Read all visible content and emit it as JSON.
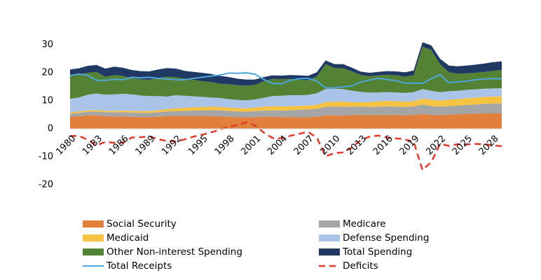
{
  "chart_data": {
    "type": "area",
    "stacked": true,
    "x": [
      1980,
      1981,
      1982,
      1983,
      1984,
      1985,
      1986,
      1987,
      1988,
      1989,
      1990,
      1991,
      1992,
      1993,
      1994,
      1995,
      1996,
      1997,
      1998,
      1999,
      2000,
      2001,
      2002,
      2003,
      2004,
      2005,
      2006,
      2007,
      2008,
      2009,
      2010,
      2011,
      2012,
      2013,
      2014,
      2015,
      2016,
      2017,
      2018,
      2019,
      2020,
      2021,
      2022,
      2023,
      2024,
      2025,
      2026,
      2027,
      2028,
      2029
    ],
    "xlim": [
      1980,
      2029
    ],
    "xticks": [
      1980,
      1983,
      1986,
      1989,
      1992,
      1995,
      1998,
      2001,
      2004,
      2007,
      2010,
      2013,
      2016,
      2019,
      2022,
      2025,
      2028
    ],
    "ylim": [
      -20,
      30
    ],
    "yticks": [
      -20,
      -10,
      0,
      10,
      20,
      30
    ],
    "series": [
      {
        "name": "Social Security",
        "color": "#e0803c",
        "values": [
          4.3,
          4.5,
          4.8,
          4.8,
          4.5,
          4.4,
          4.4,
          4.3,
          4.2,
          4.2,
          4.3,
          4.5,
          4.5,
          4.5,
          4.5,
          4.5,
          4.5,
          4.4,
          4.3,
          4.2,
          4.1,
          4.2,
          4.3,
          4.3,
          4.2,
          4.2,
          4.1,
          4.2,
          4.3,
          4.8,
          4.8,
          4.7,
          4.9,
          4.9,
          4.9,
          4.9,
          4.9,
          4.9,
          4.8,
          4.9,
          5.3,
          5.0,
          4.8,
          5.1,
          5.2,
          5.3,
          5.4,
          5.5,
          5.5,
          5.5
        ]
      },
      {
        "name": "Medicare",
        "color": "#a5a5a5",
        "values": [
          1.1,
          1.2,
          1.3,
          1.4,
          1.4,
          1.5,
          1.5,
          1.5,
          1.5,
          1.5,
          1.6,
          1.7,
          1.8,
          1.9,
          2.0,
          2.1,
          2.2,
          2.2,
          2.1,
          2.0,
          2.0,
          2.1,
          2.2,
          2.3,
          2.3,
          2.4,
          2.7,
          2.7,
          2.8,
          3.1,
          3.1,
          3.2,
          3.0,
          3.0,
          2.9,
          3.0,
          3.1,
          3.0,
          3.0,
          3.1,
          3.4,
          3.1,
          3.1,
          3.0,
          3.1,
          3.2,
          3.3,
          3.4,
          3.5,
          3.6
        ]
      },
      {
        "name": "Medicaid",
        "color": "#f5c242",
        "values": [
          0.5,
          0.5,
          0.5,
          0.5,
          0.5,
          0.5,
          0.6,
          0.6,
          0.6,
          0.6,
          0.7,
          0.8,
          1.0,
          1.1,
          1.2,
          1.2,
          1.2,
          1.2,
          1.2,
          1.2,
          1.2,
          1.3,
          1.4,
          1.5,
          1.5,
          1.5,
          1.4,
          1.4,
          1.4,
          1.7,
          1.8,
          1.8,
          1.6,
          1.6,
          1.7,
          1.9,
          2.0,
          2.0,
          1.9,
          1.9,
          2.1,
          2.3,
          2.2,
          2.3,
          2.3,
          2.4,
          2.4,
          2.5,
          2.5,
          2.5
        ]
      },
      {
        "name": "Defense Spending",
        "color": "#a9c4e6",
        "values": [
          4.8,
          5.0,
          5.6,
          5.9,
          5.8,
          5.9,
          6.0,
          5.9,
          5.6,
          5.4,
          5.1,
          4.5,
          4.7,
          4.3,
          3.9,
          3.6,
          3.3,
          3.2,
          3.0,
          2.9,
          2.9,
          2.9,
          3.2,
          3.6,
          3.8,
          3.9,
          3.8,
          3.8,
          4.2,
          4.6,
          4.6,
          4.5,
          4.1,
          3.7,
          3.4,
          3.2,
          3.1,
          3.1,
          3.1,
          3.2,
          3.4,
          3.2,
          3.0,
          3.0,
          3.0,
          3.0,
          3.0,
          2.9,
          2.9,
          2.9
        ]
      },
      {
        "name": "Other Non-interest Spending",
        "color": "#548235",
        "values": [
          8.6,
          8.2,
          7.8,
          7.7,
          6.4,
          6.9,
          6.4,
          5.8,
          5.8,
          5.8,
          6.5,
          7.1,
          6.5,
          6.1,
          5.9,
          5.6,
          5.5,
          5.1,
          5.3,
          5.3,
          5.2,
          5.2,
          5.9,
          6.1,
          5.9,
          5.8,
          5.5,
          5.2,
          5.9,
          8.9,
          7.4,
          7.4,
          6.9,
          6.0,
          5.9,
          6.1,
          6.2,
          6.1,
          5.8,
          6.0,
          15.1,
          14.6,
          10.0,
          6.8,
          6.1,
          5.9,
          5.9,
          6.0,
          6.3,
          6.5
        ]
      },
      {
        "name": "Total Spending",
        "color": "#203864",
        "values": [
          1.9,
          2.2,
          2.5,
          2.5,
          2.9,
          3.0,
          2.9,
          2.9,
          2.9,
          3.0,
          3.0,
          3.1,
          3.0,
          2.8,
          2.8,
          3.0,
          2.9,
          2.8,
          2.6,
          2.3,
          2.2,
          1.9,
          1.5,
          1.3,
          1.3,
          1.4,
          1.6,
          1.6,
          1.6,
          1.3,
          1.4,
          1.5,
          1.3,
          1.2,
          1.2,
          1.2,
          1.3,
          1.4,
          1.6,
          1.7,
          1.6,
          1.6,
          1.9,
          2.4,
          2.6,
          2.8,
          2.9,
          3.0,
          3.1,
          3.1
        ]
      },
      {
        "name": "Total Receipts",
        "type": "line",
        "color": "#4ea6dc",
        "values": [
          19.0,
          19.6,
          19.1,
          17.3,
          17.3,
          17.7,
          17.5,
          18.4,
          18.2,
          18.4,
          18.0,
          17.8,
          17.5,
          17.5,
          18.0,
          18.4,
          18.8,
          19.2,
          19.9,
          19.8,
          20.0,
          19.5,
          17.6,
          16.2,
          16.1,
          17.3,
          17.9,
          18.0,
          17.1,
          14.6,
          14.6,
          15.0,
          15.3,
          16.7,
          17.4,
          18.0,
          17.6,
          17.2,
          16.3,
          16.3,
          16.2,
          17.9,
          19.3,
          16.5,
          16.8,
          17.0,
          17.5,
          17.8,
          17.9,
          17.9
        ]
      },
      {
        "name": "Deficits",
        "type": "line",
        "dashed": true,
        "color": "#e03a2a",
        "values": [
          -2.6,
          -2.5,
          -3.9,
          -5.9,
          -4.7,
          -5.0,
          -5.0,
          -3.1,
          -3.0,
          -2.7,
          -3.7,
          -4.4,
          -4.5,
          -3.8,
          -2.8,
          -2.1,
          -1.3,
          -0.3,
          0.8,
          1.3,
          2.3,
          1.2,
          -1.4,
          -3.3,
          -3.4,
          -2.5,
          -1.8,
          -1.1,
          -3.1,
          -9.8,
          -8.7,
          -8.4,
          -6.7,
          -4.0,
          -2.8,
          -2.4,
          -3.1,
          -3.4,
          -3.8,
          -4.6,
          -14.7,
          -11.9,
          -5.4,
          -6.1,
          -5.5,
          -5.6,
          -5.4,
          -5.5,
          -5.9,
          -6.2
        ]
      }
    ]
  }
}
